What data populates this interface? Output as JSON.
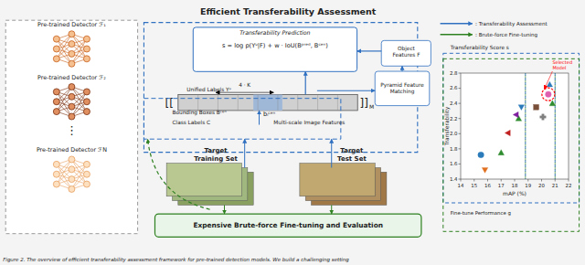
{
  "chart_data": {
    "type": "scatter",
    "title": "Efficient Transferability Assessment",
    "xlabel": "mAP (%)",
    "ylabel": "Transferability",
    "xlim": [
      14,
      22
    ],
    "ylim": [
      1.4,
      2.8
    ],
    "xticks": [
      14,
      15,
      16,
      17,
      18,
      19,
      20,
      21,
      22
    ],
    "yticks": [
      1.4,
      1.6,
      1.8,
      {
        "value": 2.0,
        "label": "2.0"
      },
      2.2,
      2.4,
      2.6,
      2.8
    ],
    "series": [
      {
        "x": [
          15.5
        ],
        "values": [
          1.72
        ],
        "color": "#2b7bba",
        "marker": "circle"
      },
      {
        "x": [
          15.8
        ],
        "values": [
          1.52
        ],
        "color": "#e07020",
        "marker": "triangle_down"
      },
      {
        "x": [
          17.0
        ],
        "values": [
          1.75
        ],
        "color": "#2e8b2e",
        "marker": "triangle_up"
      },
      {
        "x": [
          17.5
        ],
        "values": [
          2.01
        ],
        "color": "#c02020",
        "marker": "triangle_left"
      },
      {
        "x": [
          18.3
        ],
        "values": [
          2.2
        ],
        "color": "#2e8b2e",
        "marker": "triangle_up"
      },
      {
        "x": [
          18.1
        ],
        "values": [
          2.25
        ],
        "color": "#8020a0",
        "marker": "triangle_left"
      },
      {
        "x": [
          18.5
        ],
        "values": [
          2.35
        ],
        "color": "#2b7bba",
        "marker": "triangle_down"
      },
      {
        "x": [
          19.6
        ],
        "values": [
          2.35
        ],
        "color": "#7a4f3a",
        "marker": "square"
      },
      {
        "x": [
          20.1
        ],
        "values": [
          2.22
        ],
        "color": "#808080",
        "marker": "plus_filled"
      },
      {
        "x": [
          20.5
        ],
        "values": [
          2.52
        ],
        "color": "#e060b0",
        "marker": "circle"
      },
      {
        "x": [
          20.6
        ],
        "values": [
          2.65
        ],
        "color": "#2b7bba",
        "marker": "triangle_up"
      },
      {
        "x": [
          20.8
        ],
        "values": [
          2.4
        ],
        "color": "#2e8b2e",
        "marker": "triangle_up"
      }
    ],
    "vlines": {
      "x": [
        18.8,
        21.0
      ],
      "colors": [
        "#3070c0",
        "#2e8020"
      ]
    },
    "annotations": [
      {
        "text": "Selected\nModel",
        "x": 20.5,
        "y": 2.52,
        "color": "red"
      }
    ],
    "legend_items": [
      {
        "name": ": Transferability Assessment",
        "color": "#3070c0"
      },
      {
        "name": ": Brute-force Fine-tuning",
        "color": "#2e8020"
      }
    ],
    "caption": "Figure 2.  The overview of efficient transferability assessment framework for pre-trained detection models.  We build a challenging setting",
    "diagram": {
      "detectors": [
        {
          "label": "Pre-trained Detector ℱ₁",
          "color_edge": "#c8601a",
          "color_node": "#f5c090"
        },
        {
          "label": "Pre-trained Detector ℱ₂",
          "color_edge": "#7a3010",
          "color_node": "#e09060"
        },
        {
          "label": "Pre-trained Detector ℱN",
          "color_edge": "#e8a060",
          "color_node": "#fce0c0"
        }
      ],
      "ellipsis": "⋮",
      "prediction_title": "Transferability Prediction",
      "formula": "s = log p(Yᵘ|F) + w · IoU(Bᵖʳᵉᵈ, Bᶜᵉⁿ)",
      "unified_labels": "Unified Labels Yᵘ",
      "width_label": "4 · K",
      "brackets": [
        "[[",
        "]]"
      ],
      "matrix_label": "M",
      "center_label": "bᵢᶜᵉⁿ",
      "object_features": "Object\nFeatures F",
      "pyramid_matching": "Pyramid Feature\nMatching",
      "bounding_boxes": "Bounding Boxes Bᶜᵉⁿ",
      "class_labels": "Class Labels C",
      "image_features": "Multi-scale Image Features",
      "training_set": "Target\nTraining Set",
      "test_set": "Target\nTest Set",
      "training_colors": [
        "#8aa060",
        "#a0b880",
        "#b8c890"
      ],
      "test_colors": [
        "#a07848",
        "#b09060",
        "#c0a870"
      ],
      "fine_tuning": "Expensive Brute-force Fine-tuning and Evaluation",
      "score_label": "Transferability Score s",
      "performance_label": "Fine-tune Performance g"
    }
  }
}
